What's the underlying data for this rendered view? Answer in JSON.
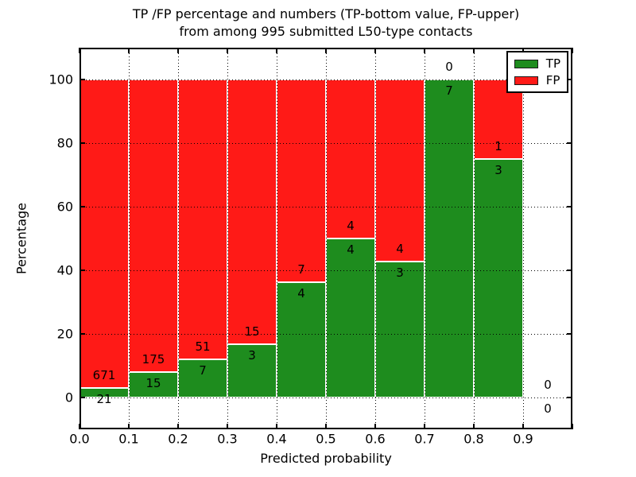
{
  "title": {
    "line1": "TP /FP percentage and numbers (TP-bottom value, FP-upper)",
    "line2": "from among 995 submitted L50-type contacts"
  },
  "axes": {
    "xlabel": "Predicted probability",
    "ylabel": "Percentage"
  },
  "legend": {
    "items": [
      {
        "label": "TP",
        "color": "#1e8c1e"
      },
      {
        "label": "FP",
        "color": "#ff1a17"
      }
    ]
  },
  "chart_data": {
    "type": "bar",
    "stacked": true,
    "normalized": "each bin stacked to 100 percent",
    "title": "TP /FP percentage and numbers (TP-bottom value, FP-upper)\nfrom among 995 submitted L50-type contacts",
    "xlabel": "Predicted probability",
    "ylabel": "Percentage",
    "total_submitted": 995,
    "xlim": [
      0.0,
      1.0
    ],
    "ylim": [
      -10,
      110
    ],
    "bin_width": 0.1,
    "bin_starts": [
      0.0,
      0.1,
      0.2,
      0.3,
      0.4,
      0.5,
      0.6,
      0.7,
      0.8,
      0.9
    ],
    "x_tick_labels": [
      "0.0",
      "0.1",
      "0.2",
      "0.3",
      "0.4",
      "0.5",
      "0.6",
      "0.7",
      "0.8",
      "0.9"
    ],
    "y_tick_values": [
      0,
      20,
      40,
      60,
      80,
      100
    ],
    "grid": "dotted",
    "grid_above_bars": true,
    "bar_edge_color": "#ffffff",
    "legend_position": "upper right",
    "series": [
      {
        "name": "TP",
        "color": "#1e8c1e",
        "counts": [
          21,
          15,
          7,
          3,
          4,
          4,
          3,
          7,
          3,
          0
        ]
      },
      {
        "name": "FP",
        "color": "#ff1a17",
        "counts": [
          671,
          175,
          51,
          15,
          7,
          4,
          4,
          0,
          1,
          0
        ]
      }
    ],
    "tp_percent_per_bin": [
      3.0,
      7.9,
      12.1,
      16.7,
      36.4,
      50.0,
      42.9,
      100.0,
      75.0,
      0
    ]
  }
}
